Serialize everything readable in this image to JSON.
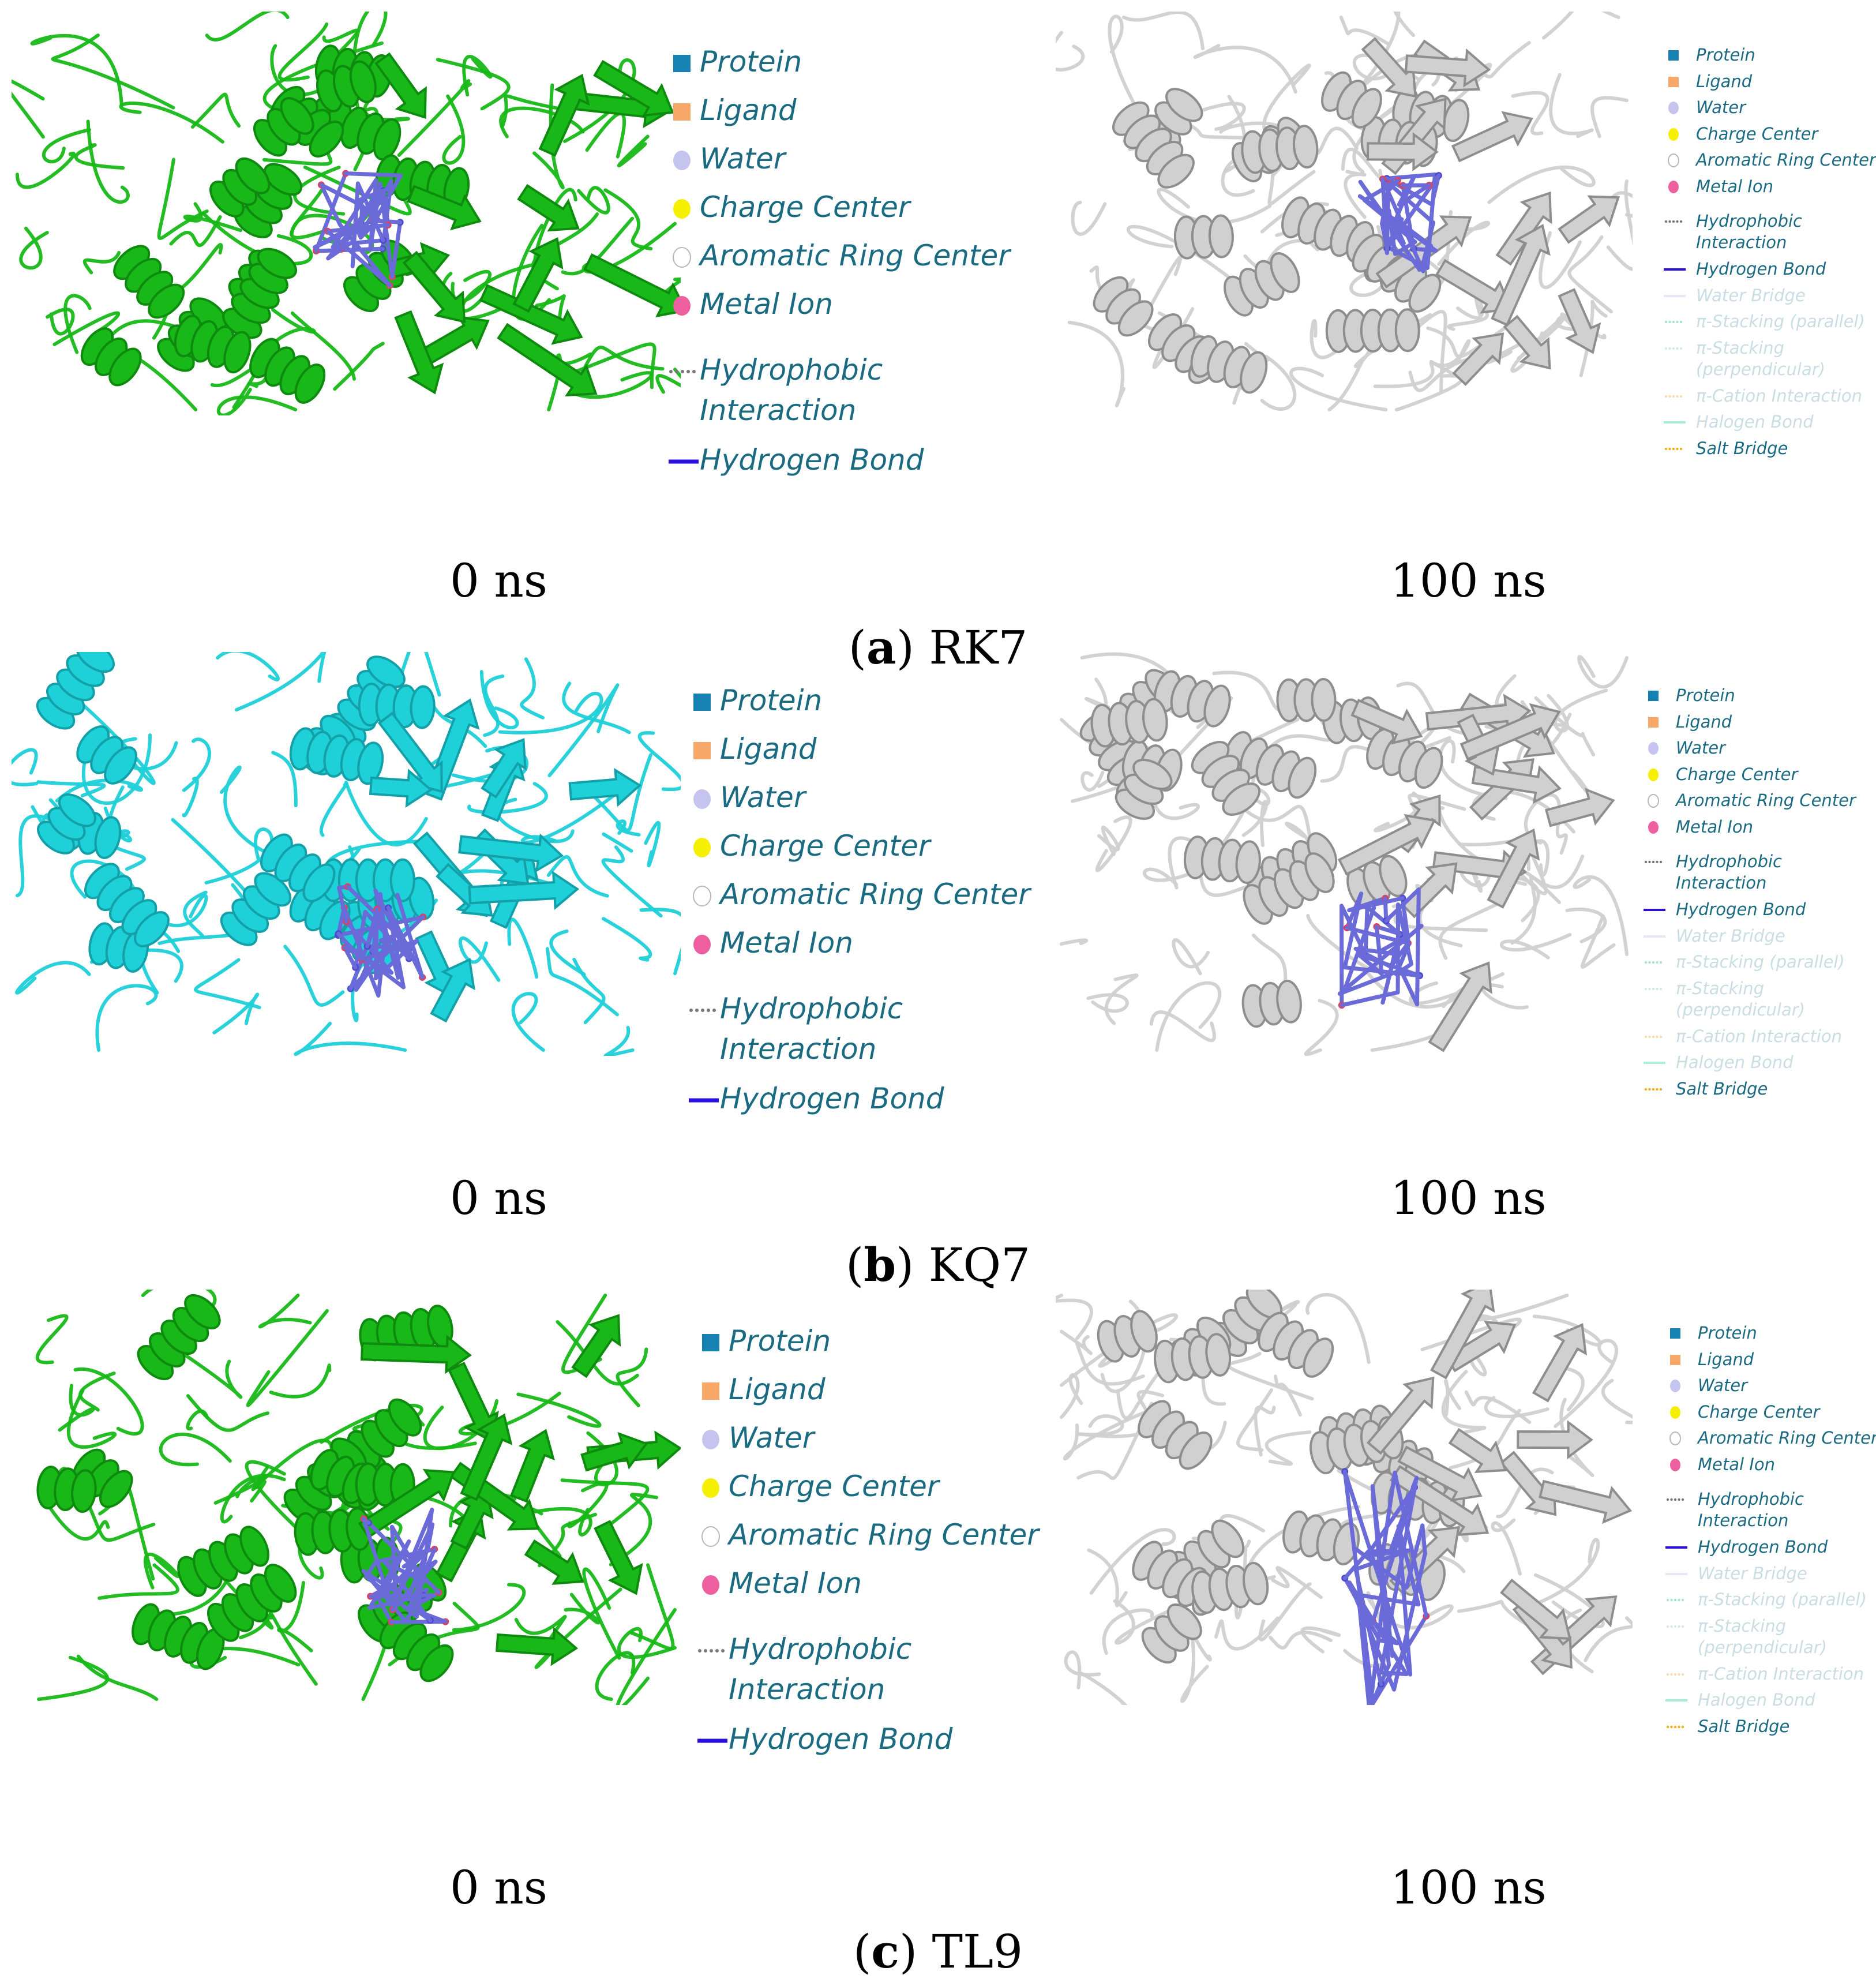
{
  "colors": {
    "green_protein": "#17b817",
    "cyan_protein": "#1ed0d8",
    "gray_protein": "#d0d0d0",
    "ligand": "#6a6ad8",
    "legend_text": "#1a6a82"
  },
  "panels": [
    {
      "id": "a",
      "letter": "a",
      "name": "RK7",
      "left_time": "0 ns",
      "right_time": "100 ns",
      "left_color": "green"
    },
    {
      "id": "b",
      "letter": "b",
      "name": "KQ7",
      "left_time": "0 ns",
      "right_time": "100 ns",
      "left_color": "cyan"
    },
    {
      "id": "c",
      "letter": "c",
      "name": "TL9",
      "left_time": "0 ns",
      "right_time": "100 ns",
      "left_color": "green"
    }
  ],
  "legend_short": [
    {
      "label": "Protein",
      "marker": "square",
      "color": "#1682b4"
    },
    {
      "label": "Ligand",
      "marker": "square",
      "color": "#f7a868"
    },
    {
      "label": "Water",
      "marker": "circle",
      "color": "#c4c4ee"
    },
    {
      "label": "Charge Center",
      "marker": "circle",
      "color": "#f5f000"
    },
    {
      "label": "Aromatic Ring Center",
      "marker": "ring",
      "color": "#b8b8b8"
    },
    {
      "label": "Metal Ion",
      "marker": "circle",
      "color": "#ee5fa0"
    },
    {
      "label": "Hydrophobic Interaction",
      "line1": "Hydrophobic",
      "line2": "Interaction",
      "marker": "dots",
      "color": "#777777"
    },
    {
      "label": "Hydrogen Bond",
      "marker": "line",
      "color": "#2a10e0"
    }
  ],
  "legend_full": [
    {
      "label": "Protein",
      "marker": "square",
      "color": "#1682b4",
      "faint": false
    },
    {
      "label": "Ligand",
      "marker": "square",
      "color": "#f7a868",
      "faint": false
    },
    {
      "label": "Water",
      "marker": "circle",
      "color": "#c4c4ee",
      "faint": false
    },
    {
      "label": "Charge Center",
      "marker": "circle",
      "color": "#f5f000",
      "faint": false
    },
    {
      "label": "Aromatic Ring Center",
      "marker": "ring",
      "color": "#b8b8b8",
      "faint": false
    },
    {
      "label": "Metal Ion",
      "marker": "circle",
      "color": "#ee5fa0",
      "faint": false
    },
    {
      "label": "Hydrophobic Interaction",
      "line1": "Hydrophobic",
      "line2": "Interaction",
      "marker": "dots",
      "color": "#777777",
      "faint": false
    },
    {
      "label": "Hydrogen Bond",
      "marker": "line",
      "color": "#2a10e0",
      "faint": false
    },
    {
      "label": "Water Bridge",
      "marker": "line",
      "color": "#e6e6f6",
      "faint": true
    },
    {
      "label": "π-Stacking (parallel)",
      "marker": "dots",
      "color": "#a8e4cc",
      "faint": true
    },
    {
      "label": "π-Stacking (perpendicular)",
      "line1": "π-Stacking",
      "line2": "(perpendicular)",
      "marker": "dots",
      "color": "#d0ece0",
      "faint": true
    },
    {
      "label": "π-Cation Interaction",
      "marker": "dots",
      "color": "#f6dcb0",
      "faint": true
    },
    {
      "label": "Halogen Bond",
      "marker": "line",
      "color": "#a8ecdc",
      "faint": true
    },
    {
      "label": "Salt Bridge",
      "marker": "dots",
      "color": "#f0b020",
      "faint": false
    }
  ]
}
